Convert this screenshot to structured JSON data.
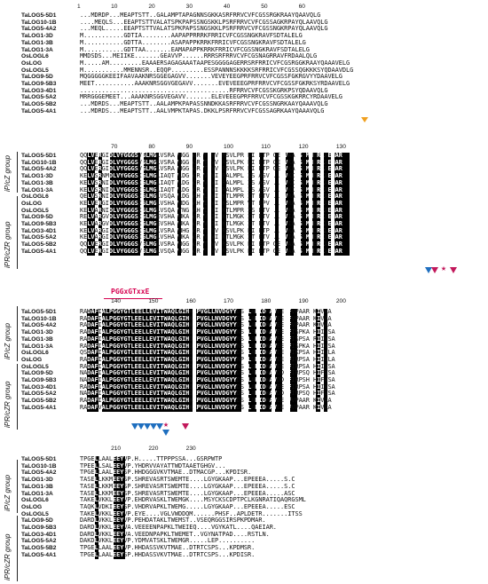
{
  "names": [
    "TaLOG5-5D1",
    "TaLOG10-1B",
    "TaLOG5-4A2",
    "TaLOG1-3D",
    "TaLOG1-3B",
    "TaLOG1-3A",
    "OsLOGL6",
    "OsLOG",
    "OsLOGL5",
    "TaLOG9-5D",
    "TaLOG9-5B3",
    "TaLOG3-4D1",
    "TaLOG5-5A2",
    "TaLOG5-5B2",
    "TaLOG5-4A1"
  ],
  "groups": {
    "ip": "iP/cZ group",
    "ipr": "iPR/cZR group"
  },
  "motif": {
    "label": "PGGxGTxxE"
  },
  "blocks": [
    {
      "ruler": [
        "1",
        "10",
        "20",
        "30",
        "40",
        "50",
        "60"
      ],
      "seqs": [
        "...MDRDP...MEAPTSTT..GALAMPTAPAGNNSGKKASRFRRVCVFCGSSRGKRAAYQAAVQLG",
        "....MEQLS...EEAPTSTTVALATSPKPAPSSNGSKKLPSRFRRVCVFCGSSAGKRPAYQLAAVQLG",
        "...MEQL.....EEAPTSTTVALATSPKPAPSSNGSKKLPSRFRRVCVFCGSSNGKRPAYQLAAVQLG",
        "M...........GDTIA........AAPAPPRRRKFRRICVFCGSSNGKRAVFSDTALELG",
        "M...........GDTTA........ASAPAPPKRRKFRRICVFCGSSNGKRAVFSDTALELG",
        "M...........GDTTAA.......EAMAPAPPKRRKFRRICVFCGSSNGKRAVFSDTALELG",
        "MMDSDS...MEIIKE.......GEAVVP......RRRSRFRRVCVFCGSNAGRRAVFRDAALQLG",
        "M.....AM.........EAAAERSAGAGAAATAAPESGGGGAGERRSRFRRICVFCGSRGGKRAAYQAAAVELG",
        "M...........MMENNSR..EQQP.........ESSPANNNSKKKKSRFRRICVFCGSSQGKKKSYQDAAVDLG",
        "MQGGGGGKEEIFAAVAAKNRSGGEGAGVV.......VEVEYEEGPRFRRVCVFCGSSFGKRGVYYDAAVELG",
        "MEET...........AAAKNRSGGVGEGAVV.......EVEVEEEGPRFRRVCVFCGSSFGKRKSYRDAAVELG",
        ".........................................RFRRVCVFCGSSKGRKPSYQDAAVQLG",
        "MRRGGGEMEET...AAAKNRSGGVEGAVV.......ELEVEEEGPRFRRVCVFCGSSKGKRRCYRDAAVELG",
        "...MDRDS...MEAPTSTT..AALAMPKPAPASSNNDKKASRFRRVCVFCGSSNGRKAAYQAAAVQLG",
        "...MDRDS...MEAPTSTT..AALVMPKTAPAS.DKKLPSRFRRVCVFCGSSAGRKAAYQAAAVQLG"
      ]
    },
    {
      "ruler": [
        "70",
        "80",
        "90",
        "100",
        "110",
        "120",
        "130"
      ],
      "seqs": [
        "QQLVERGIDLVYGGGSVGLMGLVSRAVHGGGGRVTGVVPRSVLPRELIGETPGGEEVAAVSSMHERKAEMAR",
        "QQLVERGIDLVYGGGSVGLMGLVSRAVHGGGGRVTGVVPRSVLPKELIGETPGGEEVKAVSSMHERKAEMAR",
        "QQLVERGIDLVYGGGSVGLMGLVSRAVHGGGGRVTGVVPRSVLPKELIGETPGGEEVKAVSSMHERKAEMAR",
        "KELVSRNMDLVYGGGSIGLMGLIAQTVLDGGCRVVGVIPRALMPLEISGASVG..EVKIVSDMHERKAEMAR",
        "KELVSRNIDLVYGGGSIGLMGLIAQTVLDGGCRVVGVIPRALMPLEISGASVG..EVKIVSDMHERKAEMAR",
        "KELVSRNIDLVYGGGSIGLMGLIAQTVLDGGCRVVGVIPRALMPLEISGASVG..EVKIVSDMHERKAEMAR",
        "QELVSRNIDLVYGGGSIGLMGLVSQAVLDGGRHVLGVIPKTLMPREITGETVG..EVRAVSSMHERKAEMAR",
        "KELVERGIDLVYGGGSIGLMGLVSHAVHDGGRHVIGVIPKSLMPREVTGEPVG..EVRAVSGMHERKAEMAR",
        "KELVARNIDLVYGGGSIGLMGLVSQAVYNGGRHVIGVIPKTLMPREISGETVG..EVKAVSDMHQRKAEMAR",
        "RELVARGVDLVYGGGSIGLMGEVSHAVHKAGGRVVGIIPKTLMGKEITGETVG..EVIAVSGMHERKVEMAR",
        "KELVARGVDLVYGGGSIGLMGEVSHAVHKAGGRVVGIIPKTLMGKEITGETVG..EVIAVSGMHERKVEMAR",
        "KELVARGIDLVYGGGSIGLMGLVSRAVHHGGGRVTGVVPRSVLPKELIGETPG..EVKAVSGMHDRKLEMAR",
        "KELVARGIDLVYGGGSIGLMGLVSHAVHKAGGRVVGVIPKTLMGKEITGETVG..EVIAVSGMHERKVEMAR",
        "QQLVERGIDLVYGGGSVGLMGLVSRAVHGGGGRVTGVVPRSVLPKELIGETPGGEEVAAVSSMHERKAEMAR",
        "QQLVERGIDLVYGGGSVGLMGLVSQAVHGGGGRVTGVVPRSVLPKELIGETPGGEEVAAVSSMHERKAEMAR"
      ]
    },
    {
      "ruler": [
        "140",
        "150",
        "160",
        "170",
        "180",
        "190",
        "200"
      ],
      "seqs": [
        "RADAFIALPGGYGTLEELLEVITWAQLGIHKKPVGLLNVDGYYDSLLAFIDRAVEEGFVPAARRKIVAA",
        "RADAFIALPGGYGTLEELLEVITWAQLGIHKKPVGLLNVDGYYDSLLAFIDRAVEEGFVPAARRKIVAA",
        "RADAFIALPGGYGTLEELLEVITWAQLGIHKKPVGLLNVDGYYDSLLAFIDRAVEEGFVPAARRKIVAA",
        "RADAFIALPGGYGTLEELLEVITWAQLGIHDKPVGLLNVDGYYNSLLSFIDKAVEEGFISPKARHIIVSA",
        "RADAFIALPGGYGTLEELLEVITWAQLGIHDKPVGLLNVDGYYNSLLSFIDKAVEEGFISPSARRIIVSA",
        "RADAFIALPGGYGTLEELLEVITWAQLGIHDKPVGLLNVDGYYNSLLSFIDKAVEEGFISPKARHIIVSA",
        "QSDAFIALPGGYGTLEELLEVITWAQLGIHDKPVGLLNVDGYYDSLLAFIDKAVEEGFIKPSARHIIVLA",
        "RADAFIALPGGYGTLEELLEVITWAQLGIHDKPVGLLNVDGYYNPLLSFIDKAVEEGFIRPSARHIIVLA",
        "RADAFIALPGGYGTLEELLEVITWAQLGIHDKPVGLLNVDGYYNSLLSFIDKAVEEGFIRPSARHIIVSA",
        "NADAFIALPGGYGTLEELLEVITWAQLGIHDKPVGLLNVDGYYDSLLAFIDKAVDDGFIRPSQRHIFVSA",
        "NADAFIALPGGYGTLEELLEVITWAQLGIHDKPVGLLNVDGYYDSLLAFIDKAVDDGFIRPSHRHIFVSA",
        "RADAFIALPGGYGTLEELLEVITWAQLGIHDKPVGLLNVDGYYDSLLAFIDKAVEEGFIRPSARHIIVSA",
        "NADAFIALPGGYGTLEELLEVITWAQLGIHDKPVGLLNVDGYYDSLLAFIDKAVDDGFIRPSQRHIFVSA",
        "RADAFIALPGGYGTLEELLEVITWAQLGIHKKPVGLLNVDGYYDSLLAFIDRAVEEGFVPAARRKIVAA",
        "RADAFVALPGGYGTLEELLEVITWAQLGIHKKPVGLLNVDGYYDSLLAFIDRAVEEGFVPAARRKIVAA"
      ]
    },
    {
      "ruler": [
        "210",
        "220",
        "230"
      ],
      "seqs": [
        "TPGELLAALEEYVP.H.....TTPPPSSA...GSRPWTP",
        "TPEELLSALEEYVP.YHDRVVAYATTWDTAAETGHGV...",
        "TPGELLAALEEYSP.HHDGGGVKVTMAE..DTMACGP...KPDISR.",
        "TASELLKKMEEYSP.SHREVASRTSWEMTE....LGYGKAAP...EPEEEA.....S.C",
        "TASELLKKMEEYSP.SHREVASRTSWEMTE....LGYGKAAP...EPEEEA.....S.C",
        "TASELLKKMEEYSP.SHREVASRTSWEMTE....LGYGKAAP...EPEEEA.....ASC",
        "TAKELVKKLEEYVP.EHDRVASKLTWEMGK....MSYCKSCDPTPCLKGNRATIQAQRGSML",
        "TAQKLVDKIEEYSP.VHDRVAPKLTWEMG.....LGYGKAAP...EPEEEA.....ESC",
        "TAKELVKKLEEYVP.EYE....VGLVWDDQM......PHSF..APLDETR.......ITSS",
        "DARDLVKKLEEYVP.PEHDATAKLTWEMST..VSEQRGGSIRSPKPDMAR.",
        "DARDLVKKLEEYVA.VEEEENPAPKLTWEIEQ....VGYKATL....QAEIAR.",
        "DARDLVKKLEEYVA.VEEDNPAPKLTWEMET..VGYNATPAD....RSTLN.",
        "DAKDLVKKLEEYVP.YDMVATSKLTWEMGR.....LEP..........",
        "TPGELLAALEEYVP.HHDASSVKVTMAE..DTRTCSPS...KPDMSR.",
        "TPGELLAALEEYSP.HHDASSVKVTMAE..DTRTCSPS...KPDISR."
      ]
    }
  ]
}
